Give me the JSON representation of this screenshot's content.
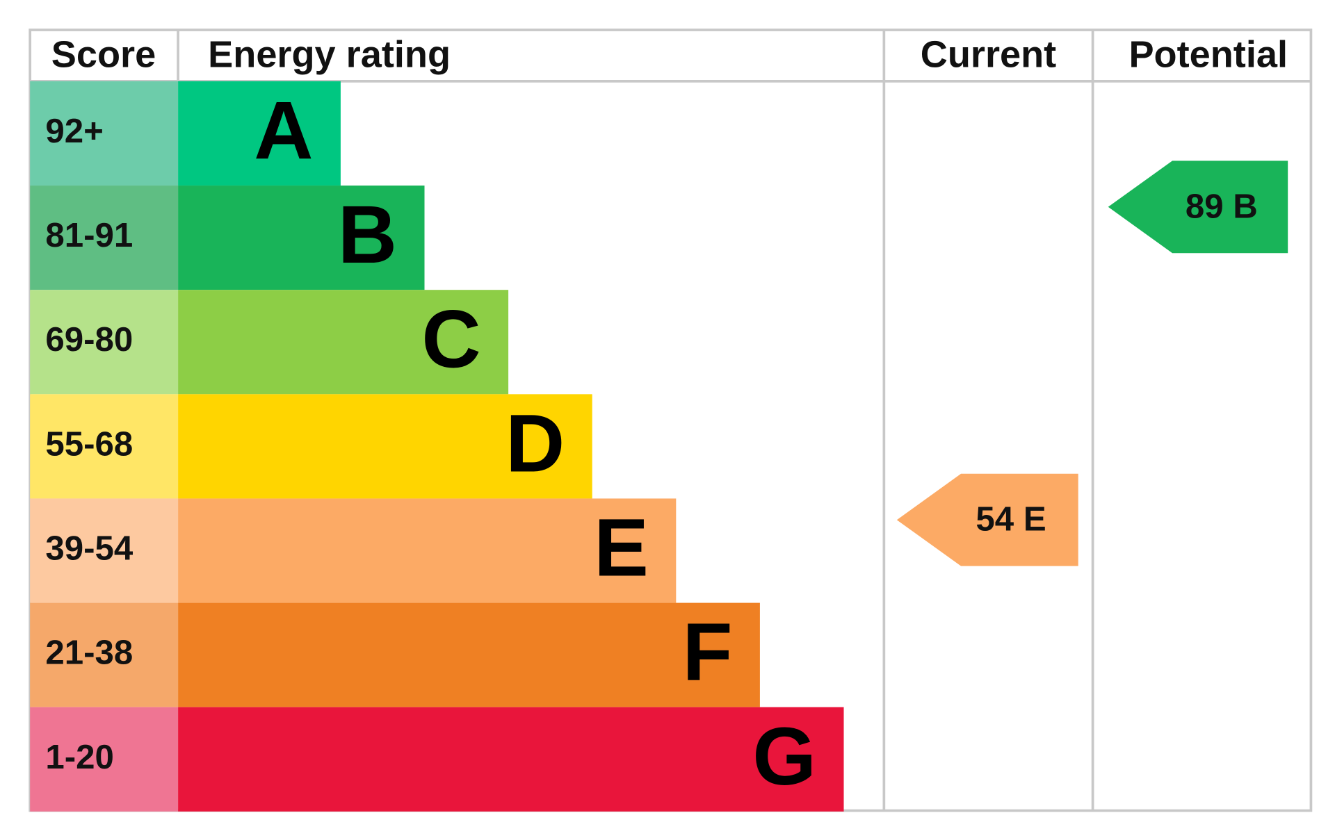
{
  "header": {
    "score": "Score",
    "rating": "Energy rating",
    "current": "Current",
    "potential": "Potential"
  },
  "bands": [
    {
      "score": "92+",
      "letter": "A",
      "color": "#00c781",
      "score_color": "#6dccaa"
    },
    {
      "score": "81-91",
      "letter": "B",
      "color": "#19b459",
      "score_color": "#5fbe83"
    },
    {
      "score": "69-80",
      "letter": "C",
      "color": "#8dce46",
      "score_color": "#b5e28a"
    },
    {
      "score": "55-68",
      "letter": "D",
      "color": "#ffd500",
      "score_color": "#ffe666"
    },
    {
      "score": "39-54",
      "letter": "E",
      "color": "#fcaa65",
      "score_color": "#fdc9a0"
    },
    {
      "score": "21-38",
      "letter": "F",
      "color": "#ef8023",
      "score_color": "#f5a86a"
    },
    {
      "score": "1-20",
      "letter": "G",
      "color": "#e9153b",
      "score_color": "#ef7593"
    }
  ],
  "current": {
    "score": 54,
    "rating": "E"
  },
  "potential": {
    "score": 89,
    "rating": "B"
  }
}
